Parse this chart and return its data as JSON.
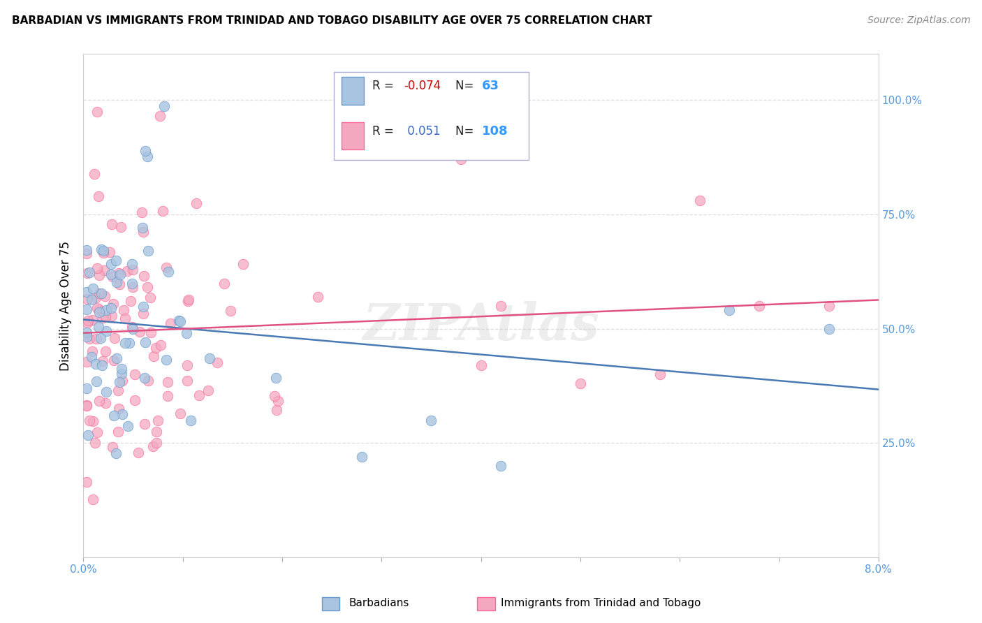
{
  "title": "BARBADIAN VS IMMIGRANTS FROM TRINIDAD AND TOBAGO DISABILITY AGE OVER 75 CORRELATION CHART",
  "source": "Source: ZipAtlas.com",
  "ylabel": "Disability Age Over 75",
  "xlim": [
    0.0,
    0.08
  ],
  "ylim": [
    0.0,
    1.1
  ],
  "ytick_positions": [
    0.0,
    0.25,
    0.5,
    0.75,
    1.0
  ],
  "ytick_labels": [
    "",
    "25.0%",
    "50.0%",
    "75.0%",
    "100.0%"
  ],
  "xtick_positions": [
    0.0,
    0.01,
    0.02,
    0.03,
    0.04,
    0.05,
    0.06,
    0.07,
    0.08
  ],
  "xtick_labels": [
    "0.0%",
    "",
    "",
    "",
    "",
    "",
    "",
    "",
    "8.0%"
  ],
  "series1_label": "Barbadians",
  "series2_label": "Immigrants from Trinidad and Tobago",
  "series1_R": -0.074,
  "series1_N": 63,
  "series2_R": 0.051,
  "series2_N": 108,
  "series1_color": "#a8c4e0",
  "series2_color": "#f4a8c0",
  "series1_line_color": "#4a7ab5",
  "series2_line_color": "#e05080",
  "series1_edge_color": "#6699cc",
  "series2_edge_color": "#ff6699",
  "legend_text_color": "#1a1a2e",
  "legend_R_neg_color": "#cc0000",
  "legend_R_pos_color": "#3366cc",
  "legend_N_color": "#3399ff",
  "tick_color": "#5599dd",
  "grid_color": "#dddddd",
  "watermark_text": "ZIPAtlas",
  "watermark_color": "#cccccc",
  "seed": 1234
}
